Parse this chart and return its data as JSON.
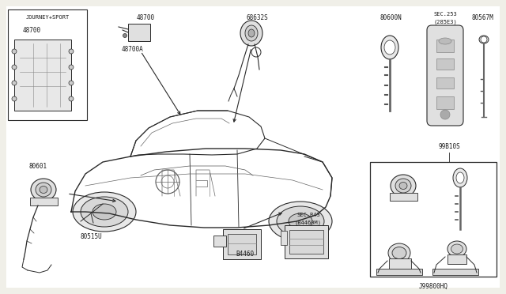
{
  "bg_color": "#f0efe8",
  "white_bg": "#ffffff",
  "text_color": "#1a1a1a",
  "line_color": "#2a2a2a",
  "part_color": "#4a4a4a",
  "labels": {
    "journey_sport": "JOURNEY+SPORT",
    "l48700_box": "48700",
    "l48700": "48700",
    "l48700a": "48700A",
    "l68632s": "68632S",
    "l80600n": "80600N",
    "lsec253": "SEC.253",
    "l285e3": "(285E3)",
    "l80567m": "80567M",
    "l80601": "80601",
    "l80515u": "80515U",
    "lb4460": "B4460",
    "lsecb43": "SEC.B43",
    "lb4460m": "(B4460M)",
    "l99b10s": "99B10S",
    "lj99800hq": "J99800HQ"
  },
  "font_size": 6.0,
  "font_family": "DejaVu Sans Mono"
}
